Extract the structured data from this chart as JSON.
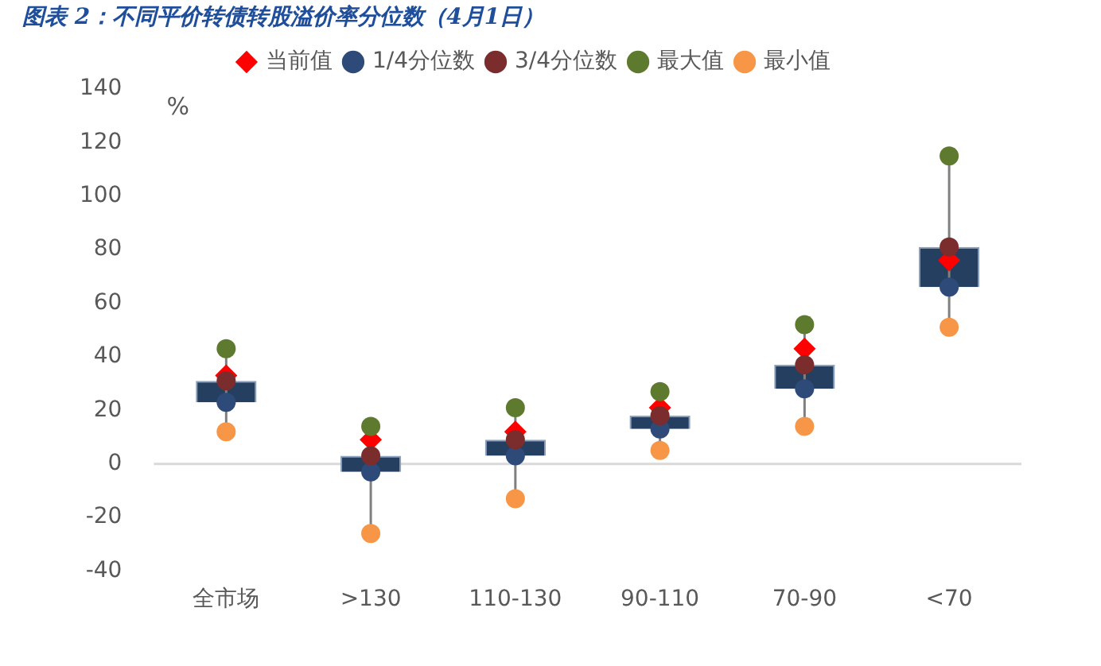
{
  "chart_data": {
    "type": "scatter",
    "title": "图表 2：不同平价转债转股溢价率分位数（4月1日）",
    "ylabel": "%",
    "categories": [
      "全市场",
      ">130",
      "110-130",
      "90-110",
      "70-90",
      "<70"
    ],
    "ylim": [
      -40,
      140
    ],
    "yticks": [
      -40,
      -20,
      0,
      20,
      40,
      60,
      80,
      100,
      120,
      140
    ],
    "grid": false,
    "legend": "top",
    "ref_lines": [
      {
        "axis": "y",
        "value": 0,
        "color": "#d9d9d9"
      }
    ],
    "series": [
      {
        "type": "bar",
        "color": "#243f60",
        "base": [
          23,
          -3,
          3,
          13,
          28,
          66
        ],
        "values": [
          8,
          6,
          6,
          5,
          9,
          15
        ]
      },
      {
        "name": "当前值",
        "color": "#ff0000",
        "marker": "diamond",
        "x": [
          "全市场",
          ">130",
          "110-130",
          "90-110",
          "70-90",
          "<70"
        ],
        "values": [
          33,
          9,
          12,
          21,
          43,
          76
        ]
      },
      {
        "name": "1/4分位数",
        "color": "#2e4a78",
        "marker": "circle",
        "x": [
          "全市场",
          ">130",
          "110-130",
          "90-110",
          "70-90",
          "<70"
        ],
        "values": [
          23,
          -3,
          3,
          13,
          28,
          66
        ]
      },
      {
        "name": "3/4分位数",
        "color": "#7b2c2c",
        "marker": "circle",
        "x": [
          "全市场",
          ">130",
          "110-130",
          "90-110",
          "70-90",
          "<70"
        ],
        "values": [
          31,
          3,
          9,
          18,
          37,
          81
        ]
      },
      {
        "name": "最大值",
        "color": "#5e7a2e",
        "marker": "circle",
        "x": [
          "全市场",
          ">130",
          "110-130",
          "90-110",
          "70-90",
          "<70"
        ],
        "values": [
          43,
          14,
          21,
          27,
          52,
          115
        ]
      },
      {
        "name": "最小值",
        "color": "#f79646",
        "marker": "circle",
        "x": [
          "全市场",
          ">130",
          "110-130",
          "90-110",
          "70-90",
          "<70"
        ],
        "values": [
          12,
          -26,
          -13,
          5,
          14,
          51
        ]
      }
    ]
  }
}
